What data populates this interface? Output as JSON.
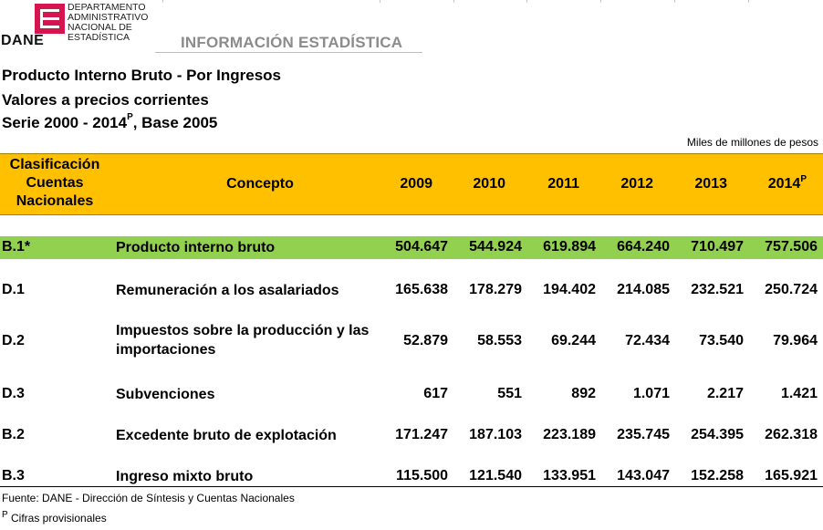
{
  "logo": {
    "word": "DANE",
    "dept_lines": [
      "DEPARTAMENTO",
      "ADMINISTRATIVO",
      "NACIONAL DE",
      "ESTADÍSTICA"
    ]
  },
  "section_title": "INFORMACIÓN ESTADÍSTICA",
  "titles": {
    "line1": "Producto Interno Bruto - Por Ingresos",
    "line2": "Valores a precios corrientes",
    "line3_prefix": "Serie 2000 - 2014",
    "line3_sup": "P",
    "line3_suffix": ", Base 2005"
  },
  "units": "Miles de millones de pesos",
  "table": {
    "header": {
      "clasificacion": [
        "Clasificación",
        "Cuentas",
        "Nacionales"
      ],
      "concepto": "Concepto",
      "years": [
        "2009",
        "2010",
        "2011",
        "2012",
        "2013",
        "2014"
      ],
      "last_year_sup": "P"
    },
    "rows": [
      {
        "code": "B.1*",
        "concept": "Producto interno bruto",
        "values": [
          "504.647",
          "544.924",
          "619.894",
          "664.240",
          "710.497",
          "757.506"
        ]
      },
      {
        "code": "D.1",
        "concept": "Remuneración a los asalariados",
        "values": [
          "165.638",
          "178.279",
          "194.402",
          "214.085",
          "232.521",
          "250.724"
        ]
      },
      {
        "code": "D.2",
        "concept": "Impuestos sobre la producción y las importaciones",
        "values": [
          "52.879",
          "58.553",
          "69.244",
          "72.434",
          "73.540",
          "79.964"
        ]
      },
      {
        "code": "D.3",
        "concept": "Subvenciones",
        "values": [
          "617",
          "551",
          "892",
          "1.071",
          "2.217",
          "1.421"
        ]
      },
      {
        "code": "B.2",
        "concept": "Excedente bruto de explotación",
        "values": [
          "171.247",
          "187.103",
          "223.189",
          "235.745",
          "254.395",
          "262.318"
        ]
      },
      {
        "code": "B.3",
        "concept": "Ingreso mixto bruto",
        "values": [
          "115.500",
          "121.540",
          "133.951",
          "143.047",
          "152.258",
          "165.921"
        ]
      }
    ]
  },
  "notes": {
    "source": "Fuente: DANE - Dirección de Síntesis y Cuentas Nacionales",
    "provisional_sup": "P",
    "provisional_text": " Cifras provisionales"
  },
  "colors": {
    "header_bg": "#ffc000",
    "highlight_row_bg": "#92d050",
    "logo_red": "#d4154f",
    "section_title": "#8c8c8c"
  }
}
